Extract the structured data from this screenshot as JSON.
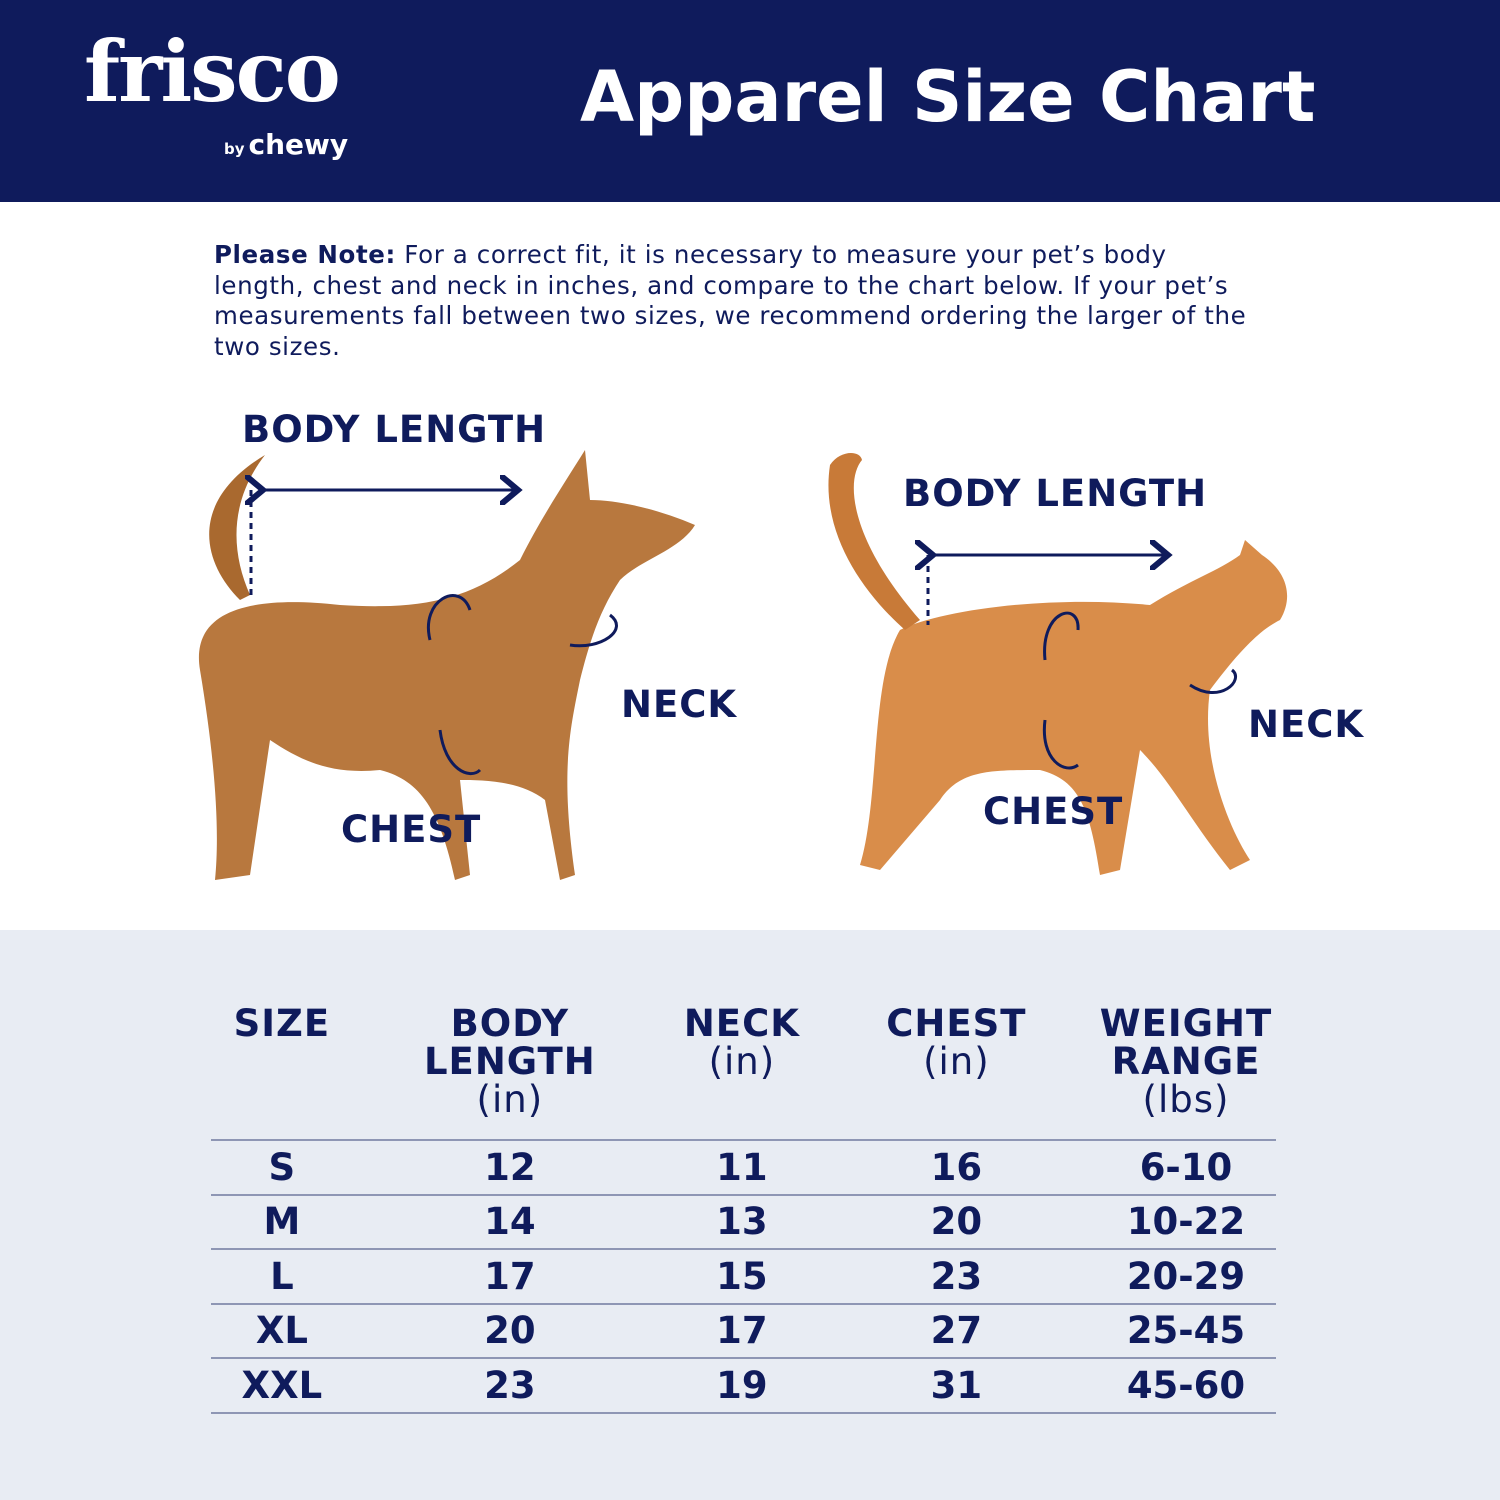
{
  "brand": {
    "logo": "frisco",
    "sub_by": "by",
    "sub_brand": "chewy"
  },
  "title": "Apparel Size Chart",
  "note": {
    "label": "Please Note:",
    "text": " For a correct fit, it is necessary to measure your pet’s body length, chest and neck in inches, and compare to the chart below. If your pet’s measurements fall between two sizes, we recommend ordering the larger of the two sizes."
  },
  "diagram": {
    "dog": {
      "body_length": "BODY LENGTH",
      "neck": "NECK",
      "chest": "CHEST"
    },
    "cat": {
      "body_length": "BODY LENGTH",
      "neck": "NECK",
      "chest": "CHEST"
    }
  },
  "colors": {
    "navy": "#0f1b5c",
    "table_bg": "#e8ecf3"
  },
  "table": {
    "headers": [
      {
        "title": "SIZE",
        "unit": ""
      },
      {
        "title": "BODY LENGTH",
        "unit": "(in)"
      },
      {
        "title": "NECK",
        "unit": "(in)"
      },
      {
        "title": "CHEST",
        "unit": "(in)"
      },
      {
        "title": "WEIGHT RANGE",
        "unit": "(lbs)"
      }
    ],
    "rows": [
      [
        "S",
        "12",
        "11",
        "16",
        "6-10"
      ],
      [
        "M",
        "14",
        "13",
        "20",
        "10-22"
      ],
      [
        "L",
        "17",
        "15",
        "23",
        "20-29"
      ],
      [
        "XL",
        "20",
        "17",
        "27",
        "25-45"
      ],
      [
        "XXL",
        "23",
        "19",
        "31",
        "45-60"
      ]
    ]
  }
}
